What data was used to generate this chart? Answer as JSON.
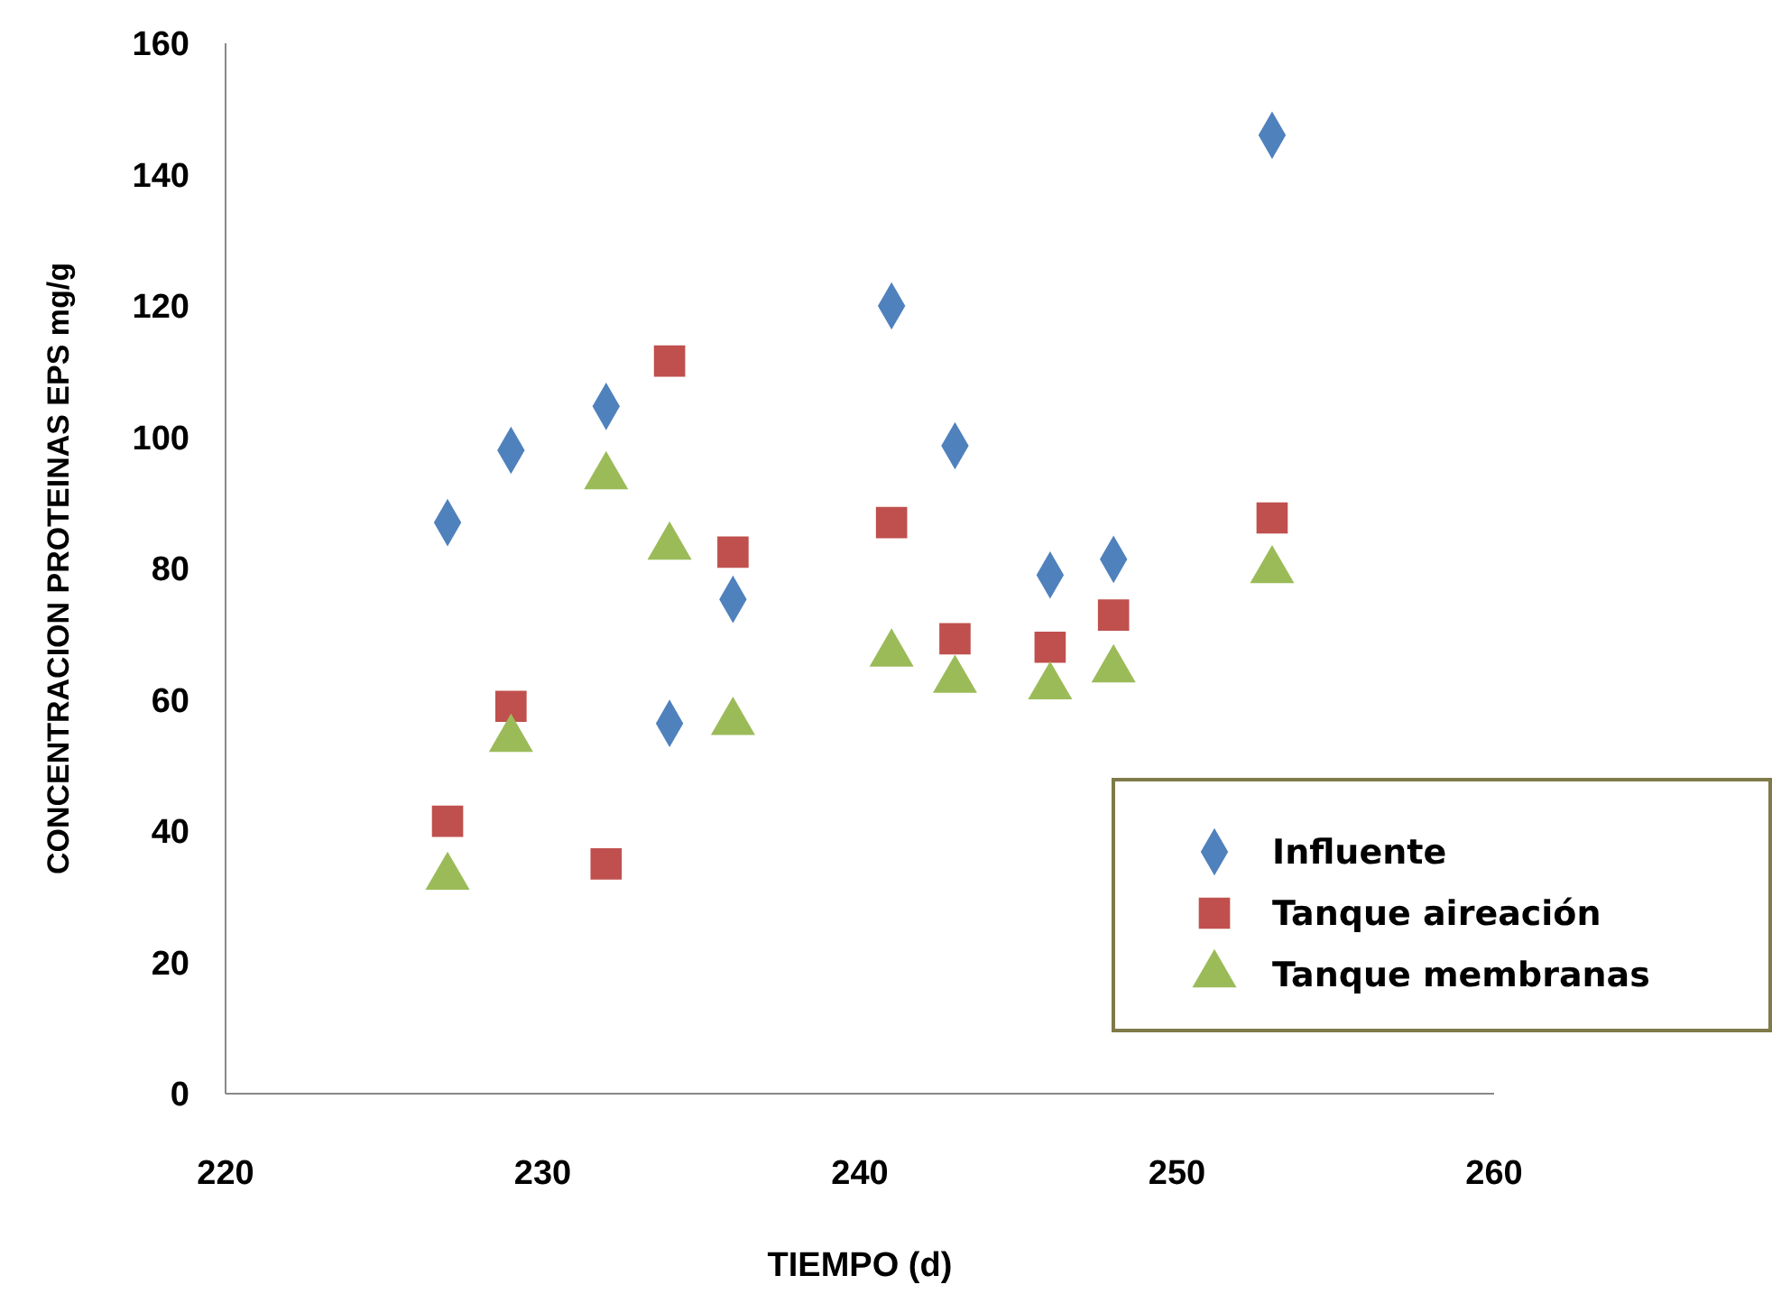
{
  "chart_data": {
    "type": "scatter",
    "xlabel": "TIEMPO (d)",
    "ylabel": "CONCENTRACION PROTEINAS EPS mg/g",
    "x": [
      227,
      229,
      232,
      234,
      236,
      241,
      243,
      246,
      248,
      253
    ],
    "series": [
      {
        "name": "Influente",
        "color": "#4f81bd",
        "marker": "diamond",
        "values": [
          87,
          98,
          104.7,
          56.4,
          75.3,
          120,
          98.7,
          79,
          81.4,
          146
        ]
      },
      {
        "name": "Tanque aireación",
        "color": "#c0504d",
        "marker": "square",
        "values": [
          41.5,
          59,
          35,
          111.6,
          82.5,
          87,
          69.3,
          68,
          72.9,
          87.7
        ]
      },
      {
        "name": "Tanque membranas",
        "color": "#9bbb59",
        "marker": "triangle",
        "values": [
          33,
          54,
          94,
          83.3,
          56.6,
          67,
          63,
          62,
          64.6,
          79.7
        ]
      }
    ],
    "xlim": [
      220,
      260
    ],
    "xticks": [
      220,
      230,
      240,
      250,
      260
    ],
    "ylim": [
      0,
      160
    ],
    "yticks": [
      0,
      20,
      40,
      60,
      80,
      100,
      120,
      140,
      160
    ],
    "grid": false,
    "legend": "bottom right"
  }
}
